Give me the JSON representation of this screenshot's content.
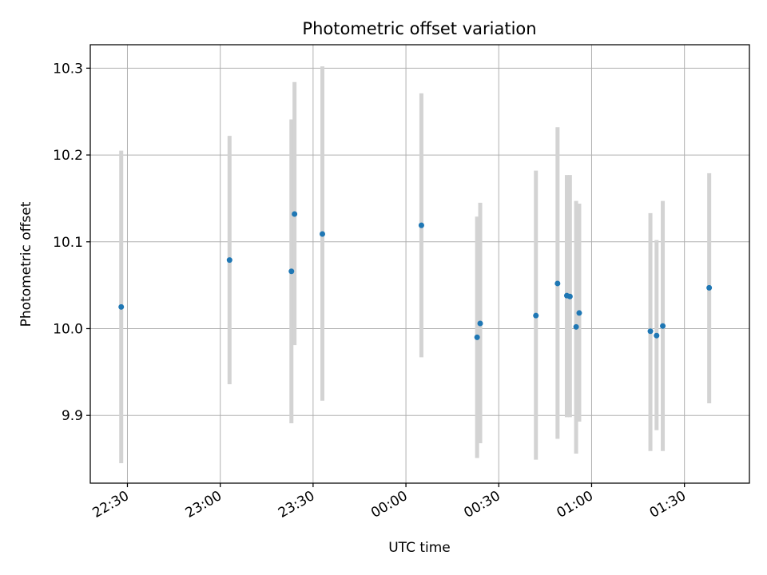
{
  "chart_data": {
    "type": "scatter",
    "title": "Photometric offset variation",
    "xlabel": "UTC time",
    "ylabel": "Photometric offset",
    "x_axis_type": "time",
    "xlim": [
      "22:18",
      "01:51"
    ],
    "ylim": [
      9.822,
      10.327
    ],
    "x_ticks": [
      "22:30",
      "23:00",
      "23:30",
      "00:00",
      "00:30",
      "01:00",
      "01:30"
    ],
    "y_ticks": [
      9.9,
      10.0,
      10.1,
      10.2,
      10.3
    ],
    "y_tick_labels": [
      "9.9",
      "10.0",
      "10.1",
      "10.2",
      "10.3"
    ],
    "grid": true,
    "marker_color": "#1f77b4",
    "errorbar_color": "#d3d3d3",
    "points": [
      {
        "x": "22:28",
        "y": 10.025,
        "ylow": 9.845,
        "yhigh": 10.205
      },
      {
        "x": "23:03",
        "y": 10.079,
        "ylow": 9.936,
        "yhigh": 10.222
      },
      {
        "x": "23:23",
        "y": 10.066,
        "ylow": 9.891,
        "yhigh": 10.241
      },
      {
        "x": "23:24",
        "y": 10.132,
        "ylow": 9.981,
        "yhigh": 10.284
      },
      {
        "x": "23:33",
        "y": 10.109,
        "ylow": 9.917,
        "yhigh": 10.302
      },
      {
        "x": "00:05",
        "y": 10.119,
        "ylow": 9.967,
        "yhigh": 10.271
      },
      {
        "x": "00:23",
        "y": 9.99,
        "ylow": 9.851,
        "yhigh": 10.129
      },
      {
        "x": "00:24",
        "y": 10.006,
        "ylow": 9.868,
        "yhigh": 10.145
      },
      {
        "x": "00:42",
        "y": 10.015,
        "ylow": 9.849,
        "yhigh": 10.182
      },
      {
        "x": "00:49",
        "y": 10.052,
        "ylow": 9.873,
        "yhigh": 10.232
      },
      {
        "x": "00:52",
        "y": 10.038,
        "ylow": 9.898,
        "yhigh": 10.177
      },
      {
        "x": "00:53",
        "y": 10.037,
        "ylow": 9.898,
        "yhigh": 10.177
      },
      {
        "x": "00:55",
        "y": 10.002,
        "ylow": 9.856,
        "yhigh": 10.147
      },
      {
        "x": "00:56",
        "y": 10.018,
        "ylow": 9.893,
        "yhigh": 10.144
      },
      {
        "x": "01:19",
        "y": 9.997,
        "ylow": 9.859,
        "yhigh": 10.133
      },
      {
        "x": "01:21",
        "y": 9.992,
        "ylow": 9.883,
        "yhigh": 10.102
      },
      {
        "x": "01:23",
        "y": 10.003,
        "ylow": 9.859,
        "yhigh": 10.147
      },
      {
        "x": "01:38",
        "y": 10.047,
        "ylow": 9.914,
        "yhigh": 10.179
      }
    ]
  }
}
